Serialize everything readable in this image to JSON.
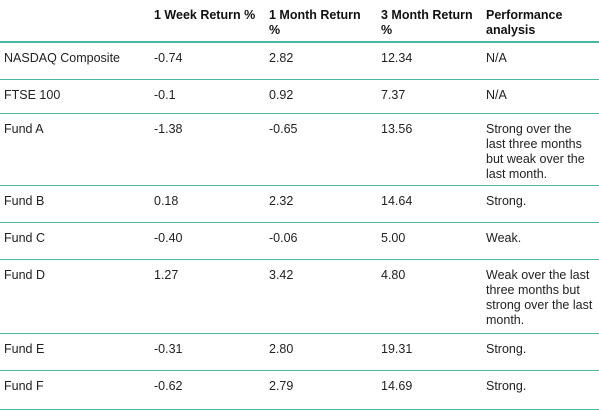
{
  "table": {
    "headers": [
      "",
      "1 Week Return %",
      "1 Month Return %",
      "3 Month Return %",
      "Performance analysis"
    ],
    "rows": [
      {
        "name": "NASDAQ Composite",
        "week": "-0.74",
        "month": "2.82",
        "three_month": "12.34",
        "analysis": "N/A"
      },
      {
        "name": "FTSE 100",
        "week": "-0.1",
        "month": "0.92",
        "three_month": "7.37",
        "analysis": "N/A"
      },
      {
        "name": "Fund A",
        "week": "-1.38",
        "month": "-0.65",
        "three_month": "13.56",
        "analysis": "Strong over the last three months but weak over the last month."
      },
      {
        "name": "Fund B",
        "week": "0.18",
        "month": "2.32",
        "three_month": "14.64",
        "analysis": "Strong."
      },
      {
        "name": "Fund C",
        "week": "-0.40",
        "month": "-0.06",
        "three_month": "5.00",
        "analysis": "Weak."
      },
      {
        "name": "Fund D",
        "week": "1.27",
        "month": "3.42",
        "three_month": "4.80",
        "analysis": "Weak over the last three months but strong over the last month."
      },
      {
        "name": "Fund E",
        "week": "-0.31",
        "month": "2.80",
        "three_month": "19.31",
        "analysis": "Strong."
      },
      {
        "name": "Fund F",
        "week": "-0.62",
        "month": "2.79",
        "three_month": "14.69",
        "analysis": "Strong."
      }
    ]
  },
  "colors": {
    "rule": "#49b8a3",
    "text": "#222222"
  }
}
